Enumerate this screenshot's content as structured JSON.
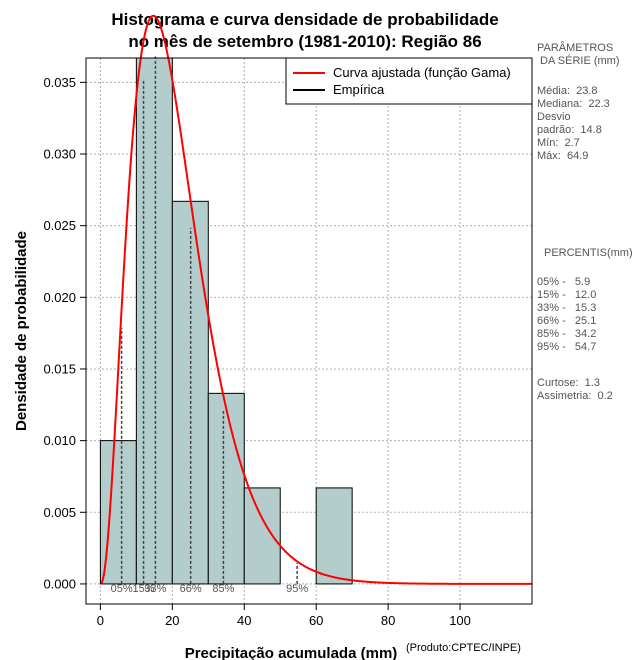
{
  "chart_data": {
    "type": "histogram",
    "title_line1": "Histograma e curva densidade de probabilidade",
    "title_line2": "no mês de setembro (1981-2010): Região 86",
    "xlabel": "Precipitação acumulada (mm)",
    "ylabel": "Densidade de probabilidade",
    "credit": "(Produto:CPTEC/INPE)",
    "xlim": [
      -4,
      120
    ],
    "ylim": [
      -0.0014,
      0.0367
    ],
    "x_ticks": [
      0,
      20,
      40,
      60,
      80,
      100
    ],
    "y_ticks": [
      0.0,
      0.005,
      0.01,
      0.015,
      0.02,
      0.025,
      0.03,
      0.035
    ],
    "y_tick_labels": [
      "0.000",
      "0.005",
      "0.010",
      "0.015",
      "0.020",
      "0.025",
      "0.030",
      "0.035"
    ],
    "grid": true,
    "bins": [
      {
        "x0": 0,
        "x1": 10,
        "density": 0.01
      },
      {
        "x0": 10,
        "x1": 20,
        "density": 0.0367
      },
      {
        "x0": 20,
        "x1": 30,
        "density": 0.0267
      },
      {
        "x0": 30,
        "x1": 40,
        "density": 0.0133
      },
      {
        "x0": 40,
        "x1": 50,
        "density": 0.0067
      },
      {
        "x0": 50,
        "x1": 60,
        "density": 0.0
      },
      {
        "x0": 60,
        "x1": 70,
        "density": 0.0067
      }
    ],
    "gamma_fit": {
      "shape": 3.3,
      "scale": 6.4
    },
    "percentile_lines": [
      {
        "x": 5.9,
        "label": "05%"
      },
      {
        "x": 12.0,
        "label": "15%"
      },
      {
        "x": 15.3,
        "label": "33%"
      },
      {
        "x": 25.1,
        "label": "66%"
      },
      {
        "x": 34.2,
        "label": "85%"
      },
      {
        "x": 54.7,
        "label": "95%"
      }
    ],
    "legend": [
      {
        "label": "Curva ajustada (função Gama)",
        "color": "#ff0000"
      },
      {
        "label": "Empírica",
        "color": "#000000"
      }
    ],
    "colors": {
      "bar_fill": "#b3cdcd",
      "curve": "#ff0000",
      "grid": "#b0b0b0"
    }
  },
  "side_panel": {
    "params_title": "PARÂMETROS\n DA SÉRIE (mm)",
    "params_body": "Média:  23.8\nMediana:  22.3\nDesvio\npadrão:  14.8\nMín:  2.7\nMáx:  64.9",
    "percentis_title": "PERCENTIS(mm)",
    "percentis_body": "05% -   5.9\n15% -   12.0\n33% -   15.3\n66% -   25.1\n85% -   34.2\n95% -   54.7",
    "extra_body": "Curtose:  1.3\nAssimetria:  0.2"
  }
}
